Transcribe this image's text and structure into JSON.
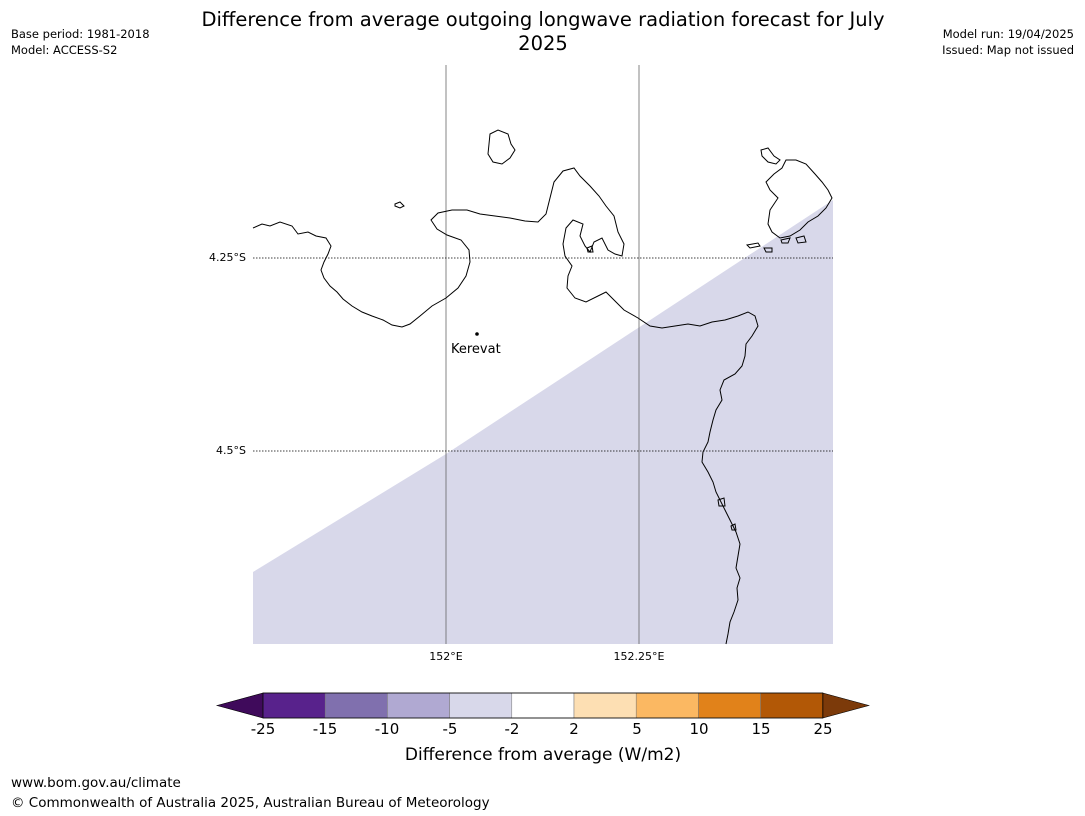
{
  "header": {
    "title": "Difference from average outgoing longwave radiation forecast for July 2025",
    "base_period": "Base period: 1981-2018",
    "model": "Model: ACCESS-S2",
    "model_run": "Model run: 19/04/2025",
    "issued": "Issued: Map not issued"
  },
  "map": {
    "lat_labels": [
      "4.25°S",
      "4.5°S"
    ],
    "lon_labels": [
      "152°E",
      "152.25°E"
    ],
    "places": [
      {
        "name": "Kerevat",
        "lat": -4.35,
        "lon": 152.04
      }
    ],
    "shaded_category": "-5 to -2",
    "shaded_color": "#d8d8ea"
  },
  "colorbar": {
    "label": "Difference from average (W/m2)",
    "ticks": [
      "-25",
      "-15",
      "-10",
      "-5",
      "-2",
      "2",
      "5",
      "10",
      "15",
      "25"
    ],
    "colors": [
      "#3f0a5b",
      "#58228c",
      "#8070ae",
      "#b0a9d2",
      "#d8d8ea",
      "#ffffff",
      "#fddfb3",
      "#fbb862",
      "#e1821a",
      "#b25806",
      "#7c3a0a"
    ]
  },
  "footer": {
    "url": "www.bom.gov.au/climate",
    "copyright": "© Commonwealth of Australia 2025, Australian Bureau of Meteorology"
  }
}
